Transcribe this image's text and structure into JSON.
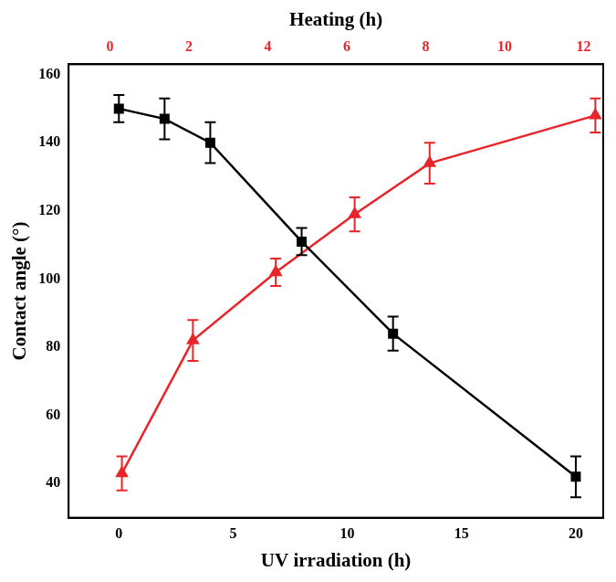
{
  "chart_data": {
    "type": "line",
    "x_label": "UV irradiation (h)",
    "x2_label": "Heating (h)",
    "y_label": "Contact angle (°)",
    "xlim": [
      -2.2,
      21.2
    ],
    "xticks": [
      0,
      5,
      10,
      15,
      20
    ],
    "x2lim": [
      -1.05,
      12.5
    ],
    "x2ticks": [
      0,
      2,
      4,
      6,
      8,
      10,
      12
    ],
    "ylim": [
      30,
      163
    ],
    "yticks": [
      40,
      60,
      80,
      100,
      120,
      140,
      160
    ],
    "grid": false,
    "series": [
      {
        "color": "#000000",
        "marker": "square",
        "line_style": "solid",
        "x": [
          0,
          2,
          4,
          8,
          12,
          20
        ],
        "values": [
          150,
          147,
          140,
          111,
          84,
          42
        ],
        "errors": [
          4,
          6,
          6,
          4,
          5,
          6
        ]
      },
      {
        "color": "#e8262a",
        "marker": "triangle",
        "line_style": "solid",
        "axis": "x2",
        "x": [
          0.3,
          2.1,
          4.2,
          6.2,
          8.1,
          12.3
        ],
        "values": [
          43,
          82,
          102,
          119,
          134,
          148
        ],
        "errors": [
          5,
          6,
          4,
          5,
          6,
          5
        ]
      }
    ]
  }
}
